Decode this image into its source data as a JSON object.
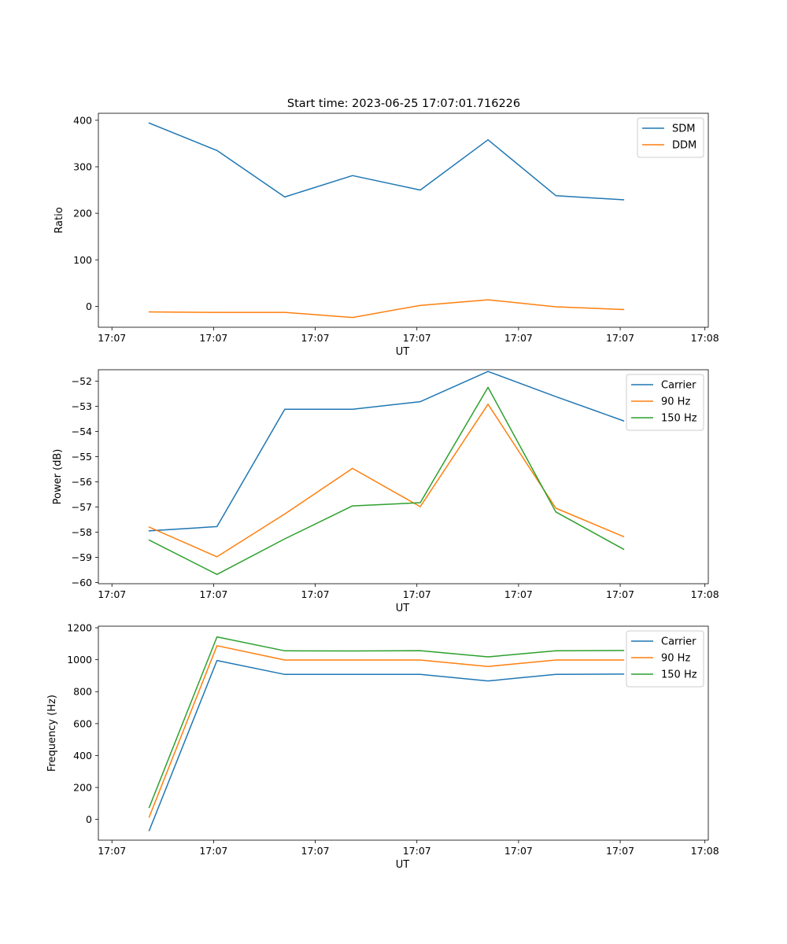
{
  "figure": {
    "title": "Start time: 2023-06-25 17:07:01.716226"
  },
  "chart_data": [
    {
      "type": "line",
      "title": "Start time: 2023-06-25 17:07:01.716226",
      "xlabel": "UT",
      "ylabel": "Ratio",
      "x": [
        1,
        2,
        3,
        4,
        5,
        6,
        7,
        8
      ],
      "xlim": [
        0.25,
        9.25
      ],
      "xticks": [
        0.45,
        1.95,
        3.45,
        4.95,
        6.45,
        7.95,
        9.45
      ],
      "xtick_labels": [
        "17:07",
        "17:07",
        "17:07",
        "17:07",
        "17:07",
        "17:07",
        "17:07"
      ],
      "xticks_end": [
        9.2
      ],
      "xtick_labels_end": [
        "17:08"
      ],
      "ylim": [
        -45,
        415
      ],
      "yticks": [
        0,
        100,
        200,
        300,
        400
      ],
      "ytick_labels": [
        "0",
        "100",
        "200",
        "300",
        "400"
      ],
      "legend": "top-right",
      "series": [
        {
          "name": "SDM",
          "color": "#1f77b4",
          "values": [
            394,
            335,
            235,
            281,
            250,
            358,
            238,
            229
          ]
        },
        {
          "name": "DDM",
          "color": "#ff7f0e",
          "values": [
            -12,
            -13,
            -13,
            -24,
            2,
            14,
            -1,
            -7
          ]
        }
      ]
    },
    {
      "type": "line",
      "xlabel": "UT",
      "ylabel": "Power (dB)",
      "x": [
        1,
        2,
        3,
        4,
        5,
        6,
        7,
        8
      ],
      "xlim": [
        0.25,
        9.25
      ],
      "xticks": [
        0.45,
        1.95,
        3.45,
        4.95,
        6.45,
        7.95,
        9.45
      ],
      "xtick_labels": [
        "17:07",
        "17:07",
        "17:07",
        "17:07",
        "17:07",
        "17:07",
        "17:07"
      ],
      "xticks_end": [
        9.2
      ],
      "xtick_labels_end": [
        "17:08"
      ],
      "ylim": [
        -60.05,
        -51.55
      ],
      "yticks": [
        -60,
        -59,
        -58,
        -57,
        -56,
        -55,
        -54,
        -53,
        -52
      ],
      "ytick_labels": [
        "−60",
        "−59",
        "−58",
        "−57",
        "−56",
        "−55",
        "−54",
        "−53",
        "−52"
      ],
      "legend": "top-right",
      "series": [
        {
          "name": "Carrier",
          "color": "#1f77b4",
          "values": [
            -57.95,
            -57.78,
            -53.12,
            -53.12,
            -52.82,
            -51.62,
            -52.62,
            -53.58
          ]
        },
        {
          "name": "90 Hz",
          "color": "#ff7f0e",
          "values": [
            -57.8,
            -58.98,
            -57.28,
            -55.47,
            -56.99,
            -52.92,
            -57.05,
            -58.18
          ]
        },
        {
          "name": "150 Hz",
          "color": "#2ca02c",
          "values": [
            -58.32,
            -59.68,
            -58.27,
            -56.96,
            -56.83,
            -52.25,
            -57.2,
            -58.68
          ]
        }
      ]
    },
    {
      "type": "line",
      "xlabel": "UT",
      "ylabel": "Frequency (Hz)",
      "x": [
        1,
        2,
        3,
        4,
        5,
        6,
        7,
        8
      ],
      "xlim": [
        0.25,
        9.25
      ],
      "xticks": [
        0.45,
        1.95,
        3.45,
        4.95,
        6.45,
        7.95,
        9.45
      ],
      "xtick_labels": [
        "17:07",
        "17:07",
        "17:07",
        "17:07",
        "17:07",
        "17:07",
        "17:07"
      ],
      "xticks_end": [
        9.2
      ],
      "xtick_labels_end": [
        "17:08"
      ],
      "ylim": [
        -130,
        1210
      ],
      "yticks": [
        0,
        200,
        400,
        600,
        800,
        1000,
        1200
      ],
      "ytick_labels": [
        "0",
        "200",
        "400",
        "600",
        "800",
        "1000",
        "1200"
      ],
      "legend": "top-right",
      "series": [
        {
          "name": "Carrier",
          "color": "#1f77b4",
          "values": [
            -70,
            995,
            908,
            908,
            908,
            867,
            908,
            910
          ]
        },
        {
          "name": "90 Hz",
          "color": "#ff7f0e",
          "values": [
            15,
            1088,
            998,
            998,
            998,
            958,
            998,
            998
          ]
        },
        {
          "name": "150 Hz",
          "color": "#2ca02c",
          "values": [
            75,
            1143,
            1056,
            1055,
            1057,
            1018,
            1056,
            1058
          ]
        }
      ]
    }
  ]
}
